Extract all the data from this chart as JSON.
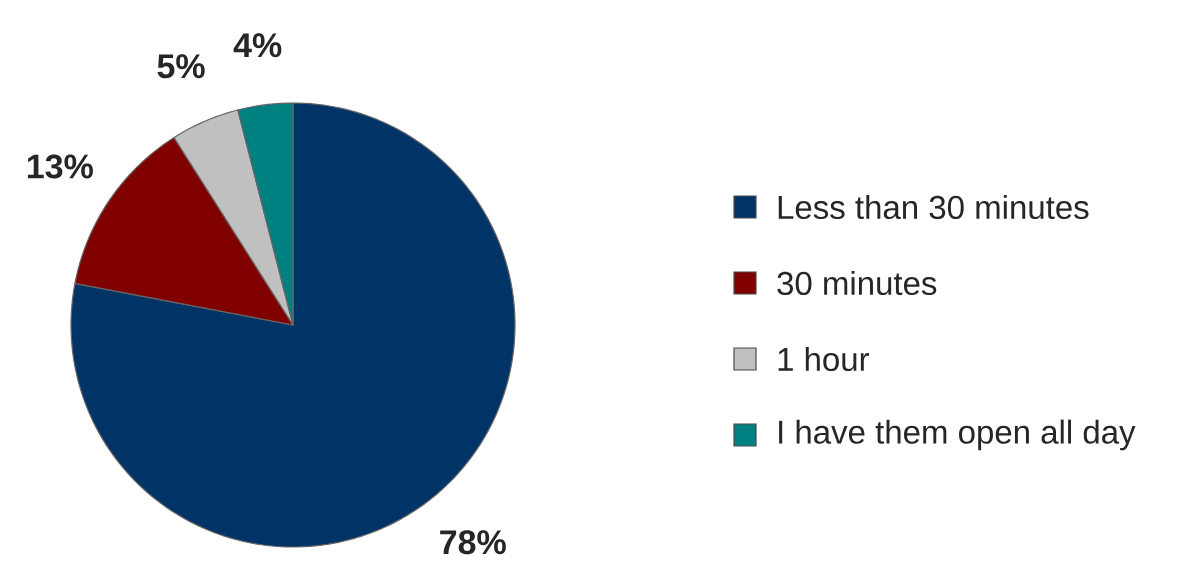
{
  "chart_data": {
    "type": "pie",
    "categories": [
      "Less than 30 minutes",
      "30 minutes",
      "1 hour",
      "I have them open all day"
    ],
    "values": [
      78,
      13,
      5,
      4
    ],
    "value_labels": [
      "78%",
      "13%",
      "5%",
      "4%"
    ],
    "colors": [
      "#003366",
      "#800000",
      "#c0c0c0",
      "#008080"
    ],
    "legend": "right"
  }
}
